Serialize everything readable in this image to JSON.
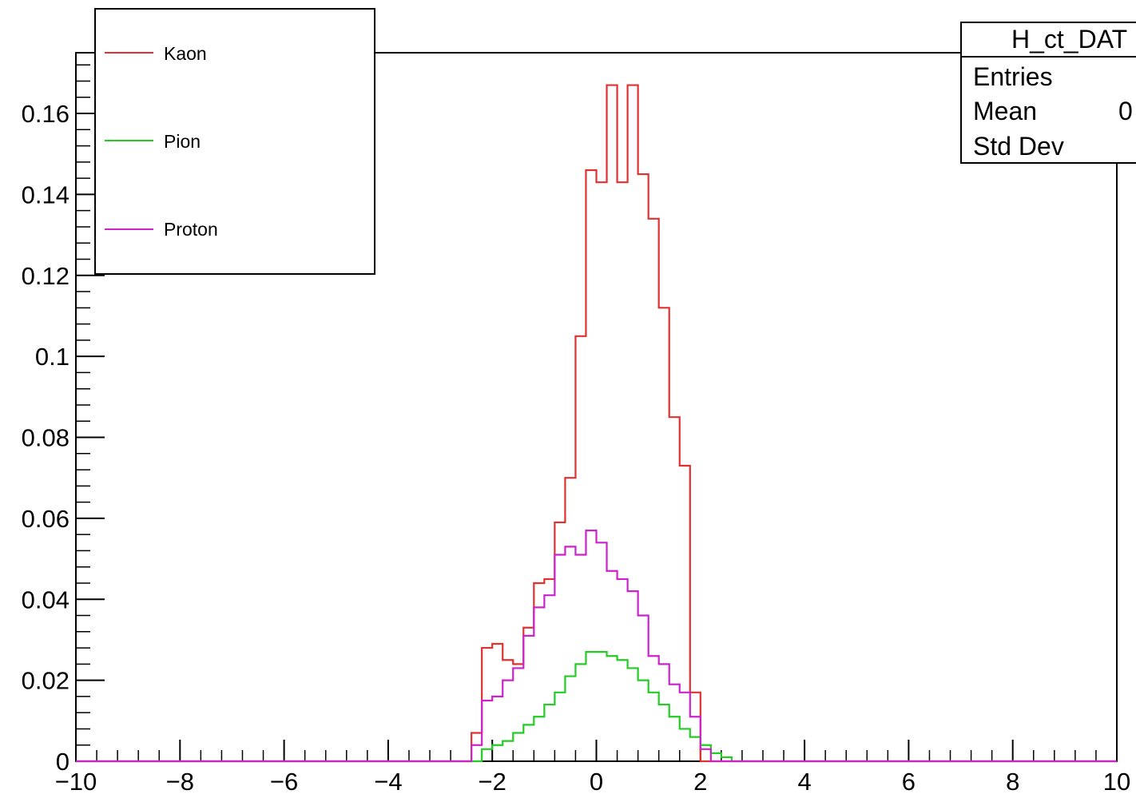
{
  "chart_data": {
    "type": "histogram",
    "title": "",
    "xlabel": "",
    "ylabel": "",
    "xlim": [
      -10,
      10
    ],
    "ylim": [
      0,
      0.175
    ],
    "log_scale": false,
    "grid": false,
    "x_ticks": [
      {
        "value": -10,
        "label": "−10"
      },
      {
        "value": -8,
        "label": "−8"
      },
      {
        "value": -6,
        "label": "−6"
      },
      {
        "value": -4,
        "label": "−4"
      },
      {
        "value": -2,
        "label": "−2"
      },
      {
        "value": 0,
        "label": "0"
      },
      {
        "value": 2,
        "label": "2"
      },
      {
        "value": 4,
        "label": "4"
      },
      {
        "value": 6,
        "label": "6"
      },
      {
        "value": 8,
        "label": "8"
      },
      {
        "value": 10,
        "label": "10"
      }
    ],
    "y_ticks": [
      {
        "value": 0,
        "label": "0"
      },
      {
        "value": 0.02,
        "label": "0.02"
      },
      {
        "value": 0.04,
        "label": "0.04"
      },
      {
        "value": 0.06,
        "label": "0.06"
      },
      {
        "value": 0.08,
        "label": "0.08"
      },
      {
        "value": 0.1,
        "label": "0.1"
      },
      {
        "value": 0.12,
        "label": "0.12"
      },
      {
        "value": 0.14,
        "label": "0.14"
      },
      {
        "value": 0.16,
        "label": "0.16"
      }
    ],
    "bin_edges_start": -2.4,
    "bin_width": 0.2,
    "series": [
      {
        "name": "Kaon",
        "color": "#e03030",
        "values": [
          0.007,
          0.028,
          0.029,
          0.025,
          0.024,
          0.033,
          0.044,
          0.045,
          0.059,
          0.07,
          0.105,
          0.146,
          0.143,
          0.167,
          0.143,
          0.167,
          0.145,
          0.134,
          0.112,
          0.085,
          0.073,
          0.017
        ]
      },
      {
        "name": "Pion",
        "color": "#22cc22",
        "values": [
          0.0,
          0.003,
          0.004,
          0.005,
          0.007,
          0.009,
          0.011,
          0.014,
          0.017,
          0.021,
          0.024,
          0.027,
          0.027,
          0.026,
          0.025,
          0.023,
          0.02,
          0.017,
          0.014,
          0.011,
          0.008,
          0.006,
          0.004,
          0.002,
          0.001
        ]
      },
      {
        "name": "Proton",
        "color": "#cc22cc",
        "values": [
          0.004,
          0.015,
          0.016,
          0.02,
          0.023,
          0.031,
          0.038,
          0.041,
          0.051,
          0.053,
          0.051,
          0.057,
          0.054,
          0.047,
          0.045,
          0.042,
          0.036,
          0.026,
          0.024,
          0.019,
          0.017,
          0.011,
          0.003
        ]
      }
    ],
    "legend": {
      "placement": "top-left",
      "entries": [
        "Kaon",
        "Pion",
        "Proton"
      ]
    },
    "stats_box": {
      "name": "H_ct_DAT",
      "rows": [
        "Entries",
        "Mean",
        "Std Dev"
      ],
      "mean_partial": "0"
    }
  }
}
